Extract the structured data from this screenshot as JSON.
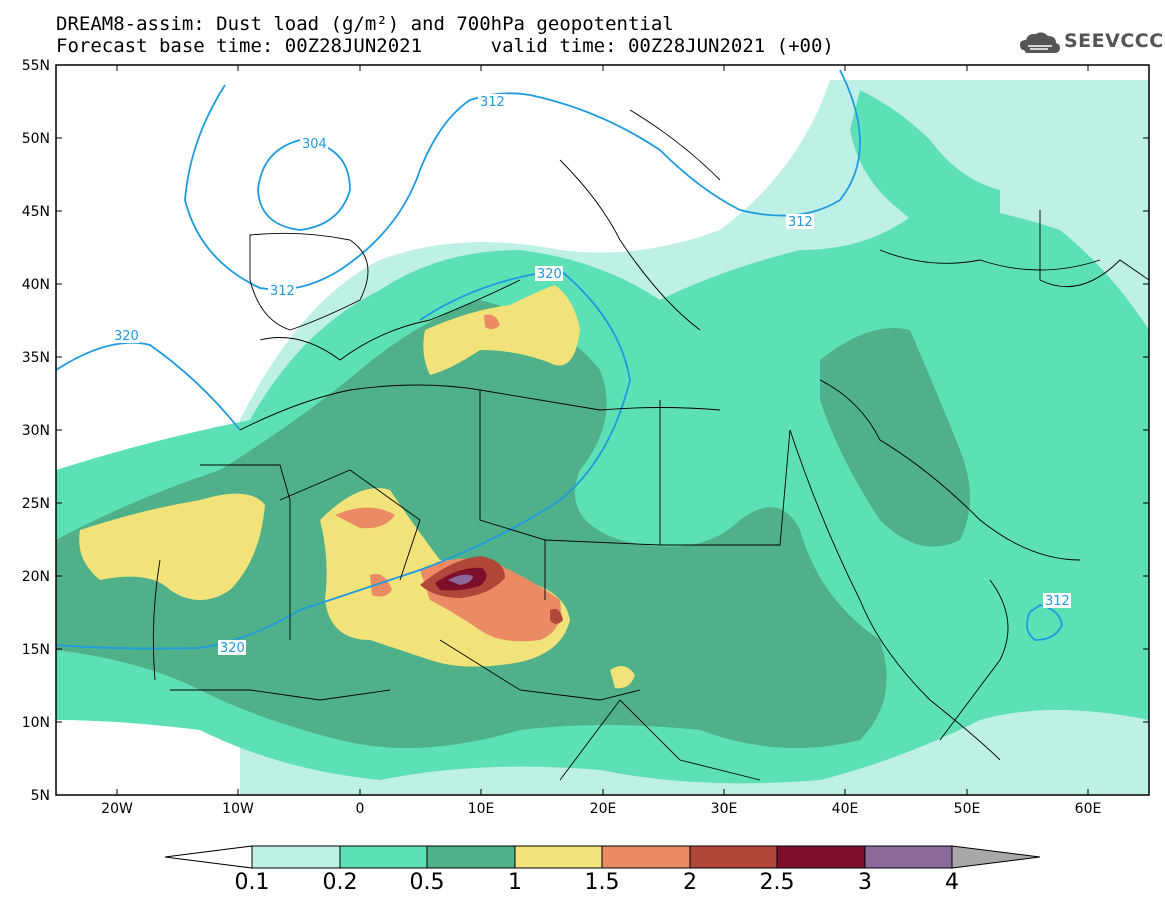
{
  "header": {
    "title_line1": "DREAM8-assim: Dust load (g/m²) and 700hPa geopotential",
    "title_line2": "Forecast base time: 00Z28JUN2021      valid time: 00Z28JUN2021 (+00)"
  },
  "logo": {
    "text": "SEEVCCC",
    "icon": "cloud-logo-icon"
  },
  "map": {
    "lat_labels": [
      "55N",
      "50N",
      "45N",
      "40N",
      "35N",
      "30N",
      "25N",
      "20N",
      "15N",
      "10N",
      "5N"
    ],
    "lon_labels": [
      "20W",
      "10W",
      "0",
      "10E",
      "20E",
      "30E",
      "40E",
      "50E",
      "60E"
    ],
    "contour_labels": [
      "304",
      "312",
      "312",
      "312",
      "312",
      "320",
      "320",
      "320"
    ],
    "colors": {
      "ocean": "#ffffff",
      "level_0_1": "#bff0e6",
      "level_0_2": "#5de0b6",
      "level_0_5": "#4fb089",
      "level_1": "#f2e27a",
      "level_1_5": "#ea8b66",
      "level_2": "#b0473a",
      "level_2_5": "#7d0f2c",
      "level_3": "#8b6a9b",
      "level_4": "#a8a8a8",
      "contour": "#1e9be0",
      "border": "#000000"
    }
  },
  "colorbar": {
    "labels": [
      "0.1",
      "0.2",
      "0.5",
      "1",
      "1.5",
      "2",
      "2.5",
      "3",
      "4"
    ],
    "colors": [
      "#bff0e6",
      "#5de0b6",
      "#4fb089",
      "#f2e27a",
      "#ea8b66",
      "#b0473a",
      "#7d0f2c",
      "#8b6a9b"
    ]
  }
}
